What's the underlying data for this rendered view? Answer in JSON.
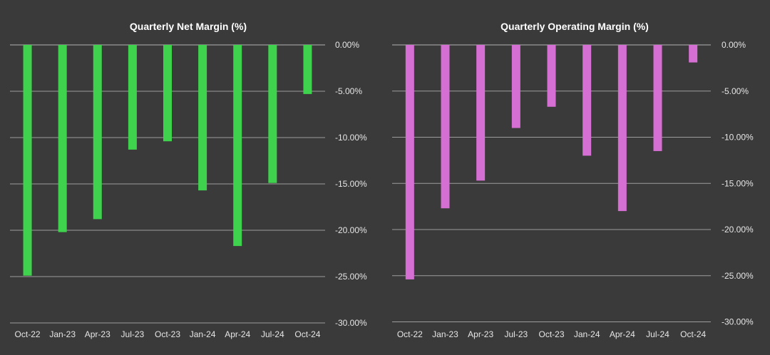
{
  "chart_data": [
    {
      "type": "bar",
      "title": "Quarterly Net Margin (%)",
      "xlabel": "",
      "ylabel": "",
      "categories": [
        "Oct-22",
        "Jan-23",
        "Apr-23",
        "Jul-23",
        "Oct-23",
        "Jan-24",
        "Apr-24",
        "Jul-24",
        "Oct-24"
      ],
      "values": [
        -24.9,
        -20.2,
        -18.8,
        -11.3,
        -10.4,
        -15.7,
        -21.7,
        -14.9,
        -5.3
      ],
      "ylim": [
        -30,
        0
      ],
      "yticks": [
        0,
        -5,
        -10,
        -15,
        -20,
        -25,
        -30
      ],
      "ytick_labels": [
        "0.00%",
        "-5.00%",
        "-10.00%",
        "-15.00%",
        "-20.00%",
        "-25.00%",
        "-30.00%"
      ],
      "color": "#3fd24d",
      "grid": true,
      "legend": "none"
    },
    {
      "type": "bar",
      "title": "Quarterly Operating Margin (%)",
      "xlabel": "",
      "ylabel": "",
      "categories": [
        "Oct-22",
        "Jan-23",
        "Apr-23",
        "Jul-23",
        "Oct-23",
        "Jan-24",
        "Apr-24",
        "Jul-24",
        "Oct-24"
      ],
      "values": [
        -25.4,
        -17.7,
        -14.7,
        -9.0,
        -6.7,
        -12.0,
        -18.0,
        -11.5,
        -1.9
      ],
      "ylim": [
        -30,
        0
      ],
      "yticks": [
        0,
        -5,
        -10,
        -15,
        -20,
        -25,
        -30
      ],
      "ytick_labels": [
        "0.00%",
        "-5.00%",
        "-10.00%",
        "-15.00%",
        "-20.00%",
        "-25.00%",
        "-30.00%"
      ],
      "color": "#d66fd3",
      "grid": true,
      "legend": "none"
    }
  ]
}
